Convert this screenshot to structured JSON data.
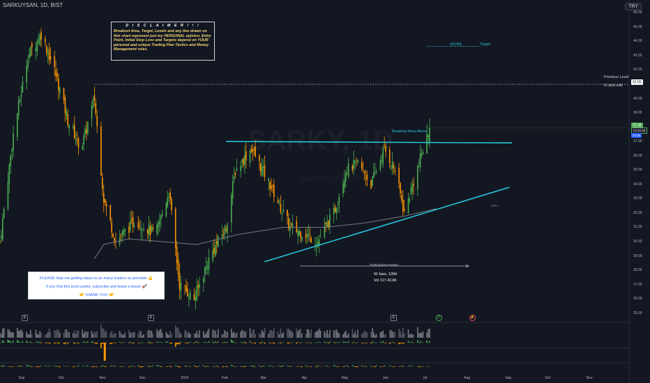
{
  "header": {
    "symbol_title": "SARKUYSAN, 1D, BIST",
    "currency": "TRY"
  },
  "watermark": {
    "ticker": "SARKY, 1D",
    "name": "SARKUYSAN"
  },
  "disclaimer": {
    "heading": "D I S C L A I M E R  ! ! !",
    "body": "Breakout Area, Target, Levels and any line drawn on this chart represent just my PERSONAL opinion. Entry Point, Initial Stop Loss and Targets depend on YOUR personal and unique Trading Plan Tactics and Money Management rules."
  },
  "promo": {
    "line1": "PLEASE help me getting ideas to as many traders as possible 💪",
    "line2": "If you find this post useful, subscribe and leave a boost 🚀",
    "line3": "🤝 THANK YOU 🤝"
  },
  "annotations": {
    "target_value": "(43.66)",
    "target_label": "Target",
    "previous_level": "Previous Level",
    "to_deal_with": "to deal with",
    "breakout": "Breakout Area Above",
    "posted": "TradingView Posted",
    "bars": "91 bars, 139d",
    "vol": "Vol 117.411M",
    "ma_label": "200.0"
  },
  "price_badges": {
    "current": "37.94",
    "countdown": "02:33:28",
    "level41": "41.00",
    "breakout_level": "37.00"
  },
  "colors": {
    "bull": "#4caf50",
    "bear": "#ff9800",
    "trend": "#26c6da",
    "ma": "#787b86",
    "bg": "#131722"
  },
  "chart_data": {
    "type": "candlestick",
    "title": "SARKUYSAN, 1D, BIST",
    "ylabel": "TRY",
    "ylim": [
      24.5,
      46.5
    ],
    "y_ticks": [
      "46.00",
      "45.00",
      "44.00",
      "43.00",
      "42.00",
      "41.00",
      "40.00",
      "39.00",
      "38.00",
      "37.00",
      "36.00",
      "35.00",
      "34.00",
      "33.00",
      "32.00",
      "31.00",
      "30.00",
      "29.00",
      "28.00",
      "27.00",
      "26.00",
      "25.00"
    ],
    "x_ticks": [
      "Sep",
      "Oct",
      "Nov",
      "Dec",
      "2024",
      "Feb",
      "Mar",
      "Apr",
      "May",
      "Jun",
      "Jul",
      "Aug",
      "Sep",
      "Oct",
      "Nov"
    ],
    "close_path": [
      {
        "date": "2023-08-15",
        "close": 30.0
      },
      {
        "date": "2023-08-25",
        "close": 37.5
      },
      {
        "date": "2023-09-05",
        "close": 43.0
      },
      {
        "date": "2023-09-15",
        "close": 44.5
      },
      {
        "date": "2023-09-25",
        "close": 42.0
      },
      {
        "date": "2023-10-05",
        "close": 38.5
      },
      {
        "date": "2023-10-15",
        "close": 36.5
      },
      {
        "date": "2023-10-25",
        "close": 40.0
      },
      {
        "date": "2023-11-01",
        "close": 33.0
      },
      {
        "date": "2023-11-10",
        "close": 30.0
      },
      {
        "date": "2023-11-25",
        "close": 31.5
      },
      {
        "date": "2023-12-10",
        "close": 30.5
      },
      {
        "date": "2023-12-20",
        "close": 33.5
      },
      {
        "date": "2023-12-28",
        "close": 27.0
      },
      {
        "date": "2024-01-08",
        "close": 26.0
      },
      {
        "date": "2024-01-20",
        "close": 29.0
      },
      {
        "date": "2024-02-01",
        "close": 31.0
      },
      {
        "date": "2024-02-08",
        "close": 35.0
      },
      {
        "date": "2024-02-20",
        "close": 36.5
      },
      {
        "date": "2024-03-05",
        "close": 34.0
      },
      {
        "date": "2024-03-20",
        "close": 31.0
      },
      {
        "date": "2024-04-01",
        "close": 30.5
      },
      {
        "date": "2024-04-10",
        "close": 30.0
      },
      {
        "date": "2024-04-22",
        "close": 32.0
      },
      {
        "date": "2024-05-01",
        "close": 35.0
      },
      {
        "date": "2024-05-10",
        "close": 35.5
      },
      {
        "date": "2024-05-20",
        "close": 34.0
      },
      {
        "date": "2024-05-30",
        "close": 36.5
      },
      {
        "date": "2024-06-07",
        "close": 35.0
      },
      {
        "date": "2024-06-14",
        "close": 32.0
      },
      {
        "date": "2024-06-25",
        "close": 35.5
      },
      {
        "date": "2024-07-03",
        "close": 37.94
      }
    ],
    "ma200": [
      {
        "date": "2023-10-25",
        "value": 28.8
      },
      {
        "date": "2023-11-01",
        "value": 29.8
      },
      {
        "date": "2023-11-20",
        "value": 30.2
      },
      {
        "date": "2023-12-15",
        "value": 30.0
      },
      {
        "date": "2024-01-10",
        "value": 29.8
      },
      {
        "date": "2024-02-10",
        "value": 30.5
      },
      {
        "date": "2024-03-15",
        "value": 31.0
      },
      {
        "date": "2024-04-15",
        "value": 31.0
      },
      {
        "date": "2024-05-15",
        "value": 31.3
      },
      {
        "date": "2024-06-15",
        "value": 31.8
      },
      {
        "date": "2024-07-08",
        "value": 32.3
      }
    ],
    "lines": {
      "breakout": {
        "from": {
          "date": "2024-02-01",
          "y": 37.0
        },
        "to": {
          "date": "2024-09-03",
          "y": 36.9
        }
      },
      "support": {
        "from": {
          "date": "2024-03-01",
          "y": 28.6
        },
        "to": {
          "date": "2024-09-01",
          "y": 33.8
        }
      },
      "target": {
        "y": 43.66
      },
      "previous_level": {
        "y": 41.0
      }
    }
  }
}
